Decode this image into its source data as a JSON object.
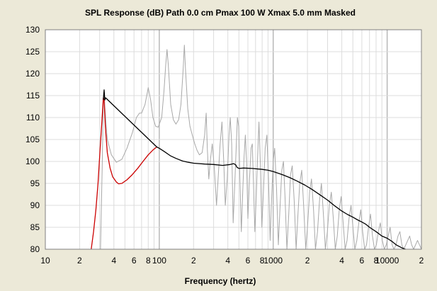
{
  "chart_data": {
    "type": "line",
    "title": "SPL Response (dB)   Path 0.0 cm   Pmax 100 W   Xmax 5.0 mm   Masked",
    "xlabel": "Frequency (hertz)",
    "ylabel": "",
    "x_scale": "log",
    "xlim": [
      10,
      20000
    ],
    "ylim": [
      80,
      130
    ],
    "grid": true,
    "x_tick_labels": [
      {
        "value": 10,
        "label": "10"
      },
      {
        "value": 20,
        "label": "2"
      },
      {
        "value": 40,
        "label": "4"
      },
      {
        "value": 60,
        "label": "6"
      },
      {
        "value": 80,
        "label": "8"
      },
      {
        "value": 100,
        "label": "100"
      },
      {
        "value": 200,
        "label": "2"
      },
      {
        "value": 400,
        "label": "4"
      },
      {
        "value": 600,
        "label": "6"
      },
      {
        "value": 800,
        "label": "8"
      },
      {
        "value": 1000,
        "label": "1000"
      },
      {
        "value": 2000,
        "label": "2"
      },
      {
        "value": 4000,
        "label": "4"
      },
      {
        "value": 6000,
        "label": "6"
      },
      {
        "value": 8000,
        "label": "8"
      },
      {
        "value": 10000,
        "label": "10000"
      },
      {
        "value": 20000,
        "label": "2"
      }
    ],
    "y_ticks": [
      80,
      85,
      90,
      95,
      100,
      105,
      110,
      115,
      120,
      125,
      130
    ],
    "colors": {
      "excursion_limited": "#cc0000",
      "masked": "#000000",
      "unmasked": "#a8a8a8"
    },
    "series": [
      {
        "key": "unmasked",
        "points": [
          [
            30.5,
            80
          ],
          [
            31.5,
            98
          ],
          [
            32.3,
            114
          ],
          [
            32.8,
            116
          ],
          [
            33.4,
            112
          ],
          [
            35,
            105
          ],
          [
            38,
            101.5
          ],
          [
            42,
            99.8
          ],
          [
            47,
            100.5
          ],
          [
            52,
            103
          ],
          [
            58,
            106.5
          ],
          [
            63,
            110
          ],
          [
            67,
            111
          ],
          [
            70,
            111
          ],
          [
            75,
            113
          ],
          [
            80,
            116.8
          ],
          [
            84,
            114
          ],
          [
            88,
            110
          ],
          [
            93,
            108
          ],
          [
            98,
            107.8
          ],
          [
            105,
            110
          ],
          [
            110,
            116
          ],
          [
            114,
            122
          ],
          [
            117,
            125.5
          ],
          [
            120,
            122
          ],
          [
            126,
            113
          ],
          [
            133,
            109.5
          ],
          [
            140,
            108.5
          ],
          [
            148,
            109.5
          ],
          [
            155,
            113
          ],
          [
            162,
            121
          ],
          [
            166,
            126.5
          ],
          [
            170,
            121
          ],
          [
            178,
            112
          ],
          [
            186,
            108
          ],
          [
            195,
            106
          ],
          [
            205,
            104
          ],
          [
            215,
            102.5
          ],
          [
            225,
            101.5
          ],
          [
            238,
            102
          ],
          [
            250,
            106
          ],
          [
            258,
            111
          ],
          [
            264,
            103
          ],
          [
            272,
            96
          ],
          [
            280,
            100
          ],
          [
            292,
            104
          ],
          [
            305,
            98
          ],
          [
            318,
            90
          ],
          [
            330,
            97
          ],
          [
            342,
            104
          ],
          [
            355,
            109
          ],
          [
            368,
            100
          ],
          [
            380,
            90
          ],
          [
            395,
            96
          ],
          [
            410,
            106
          ],
          [
            420,
            110
          ],
          [
            432,
            104
          ],
          [
            445,
            86
          ],
          [
            460,
            95
          ],
          [
            475,
            104
          ],
          [
            485,
            110
          ],
          [
            498,
            108
          ],
          [
            510,
            96
          ],
          [
            525,
            84
          ],
          [
            540,
            93
          ],
          [
            555,
            101
          ],
          [
            570,
            106
          ],
          [
            585,
            99
          ],
          [
            600,
            87
          ],
          [
            620,
            96
          ],
          [
            640,
            103
          ],
          [
            655,
            104
          ],
          [
            670,
            96
          ],
          [
            690,
            84
          ],
          [
            710,
            92
          ],
          [
            730,
            101
          ],
          [
            750,
            109
          ],
          [
            770,
            100
          ],
          [
            795,
            85
          ],
          [
            820,
            93
          ],
          [
            850,
            103
          ],
          [
            880,
            106
          ],
          [
            910,
            96
          ],
          [
            940,
            82
          ],
          [
            970,
            92
          ],
          [
            1000,
            100
          ],
          [
            1030,
            103
          ],
          [
            1070,
            94
          ],
          [
            1110,
            81
          ],
          [
            1150,
            90
          ],
          [
            1190,
            98
          ],
          [
            1230,
            100
          ],
          [
            1270,
            92
          ],
          [
            1320,
            80
          ],
          [
            1370,
            88
          ],
          [
            1420,
            97
          ],
          [
            1470,
            99
          ],
          [
            1530,
            91
          ],
          [
            1590,
            80
          ],
          [
            1650,
            88
          ],
          [
            1710,
            95
          ],
          [
            1780,
            98
          ],
          [
            1850,
            90
          ],
          [
            1930,
            80
          ],
          [
            2010,
            86
          ],
          [
            2090,
            93
          ],
          [
            2170,
            96
          ],
          [
            2260,
            89
          ],
          [
            2350,
            80
          ],
          [
            2450,
            84
          ],
          [
            2550,
            91
          ],
          [
            2650,
            95
          ],
          [
            2760,
            88
          ],
          [
            2870,
            80
          ],
          [
            2990,
            84
          ],
          [
            3110,
            90
          ],
          [
            3240,
            93
          ],
          [
            3370,
            87
          ],
          [
            3510,
            80
          ],
          [
            3650,
            83
          ],
          [
            3800,
            89
          ],
          [
            3950,
            92
          ],
          [
            4110,
            86
          ],
          [
            4280,
            80
          ],
          [
            4450,
            82
          ],
          [
            4630,
            87
          ],
          [
            4820,
            90
          ],
          [
            5010,
            85
          ],
          [
            5210,
            80
          ],
          [
            5420,
            82
          ],
          [
            5640,
            86
          ],
          [
            5870,
            89
          ],
          [
            6100,
            84
          ],
          [
            6350,
            80
          ],
          [
            6600,
            81
          ],
          [
            6870,
            85
          ],
          [
            7150,
            88
          ],
          [
            7440,
            83
          ],
          [
            7740,
            80
          ],
          [
            8050,
            81
          ],
          [
            8380,
            84
          ],
          [
            8720,
            86
          ],
          [
            9070,
            82
          ],
          [
            9440,
            80
          ],
          [
            9820,
            81
          ],
          [
            10220,
            83
          ],
          [
            10630,
            85
          ],
          [
            11060,
            81
          ],
          [
            11500,
            80
          ],
          [
            11970,
            81
          ],
          [
            12450,
            83
          ],
          [
            12950,
            84
          ],
          [
            13470,
            81
          ],
          [
            14010,
            80
          ],
          [
            14580,
            81
          ],
          [
            15170,
            82
          ],
          [
            15780,
            83
          ],
          [
            16420,
            81
          ],
          [
            17080,
            80
          ],
          [
            17770,
            81
          ],
          [
            18490,
            82
          ],
          [
            19240,
            81
          ],
          [
            20000,
            80
          ]
        ]
      },
      {
        "key": "excursion_limited",
        "points": [
          [
            25.3,
            80
          ],
          [
            26.5,
            84
          ],
          [
            27.8,
            89
          ],
          [
            29,
            95
          ],
          [
            30.3,
            103
          ],
          [
            31.5,
            110
          ],
          [
            32.3,
            114.5
          ],
          [
            32.8,
            114
          ],
          [
            33.6,
            108
          ],
          [
            35,
            102
          ],
          [
            37,
            98.5
          ],
          [
            39,
            96.5
          ],
          [
            42,
            95.3
          ],
          [
            44,
            94.9
          ],
          [
            47,
            95
          ],
          [
            52,
            95.8
          ],
          [
            58,
            97
          ],
          [
            65,
            98.5
          ],
          [
            72,
            100
          ],
          [
            80,
            101.5
          ],
          [
            88,
            102.6
          ],
          [
            92,
            103
          ],
          [
            95,
            103.3
          ]
        ]
      },
      {
        "key": "masked",
        "points": [
          [
            32.3,
            114
          ],
          [
            32.8,
            116.3
          ],
          [
            33.3,
            114
          ],
          [
            33.8,
            114.5
          ],
          [
            95,
            103.3
          ],
          [
            100,
            103
          ],
          [
            110,
            102.3
          ],
          [
            125,
            101.3
          ],
          [
            140,
            100.7
          ],
          [
            160,
            100.1
          ],
          [
            180,
            99.8
          ],
          [
            200,
            99.6
          ],
          [
            250,
            99.4
          ],
          [
            300,
            99.3
          ],
          [
            360,
            99.1
          ],
          [
            420,
            99.3
          ],
          [
            450,
            99.5
          ],
          [
            470,
            99.2
          ],
          [
            480,
            98.7
          ],
          [
            500,
            98.4
          ],
          [
            550,
            98.5
          ],
          [
            650,
            98.4
          ],
          [
            800,
            98.2
          ],
          [
            900,
            98
          ],
          [
            1000,
            97.7
          ],
          [
            1200,
            97
          ],
          [
            1400,
            96.3
          ],
          [
            1600,
            95.6
          ],
          [
            1900,
            94.6
          ],
          [
            2200,
            93.6
          ],
          [
            2600,
            92.3
          ],
          [
            3000,
            91.2
          ],
          [
            3500,
            89.8
          ],
          [
            4000,
            88.7
          ],
          [
            4500,
            87.9
          ],
          [
            5000,
            87.3
          ],
          [
            5500,
            86.7
          ],
          [
            6000,
            86.2
          ],
          [
            6500,
            85.7
          ],
          [
            7000,
            85
          ],
          [
            8000,
            84
          ],
          [
            9000,
            83
          ],
          [
            10000,
            82.5
          ],
          [
            11000,
            81.8
          ],
          [
            12000,
            81
          ],
          [
            13500,
            80.3
          ],
          [
            14500,
            80
          ]
        ]
      }
    ]
  }
}
